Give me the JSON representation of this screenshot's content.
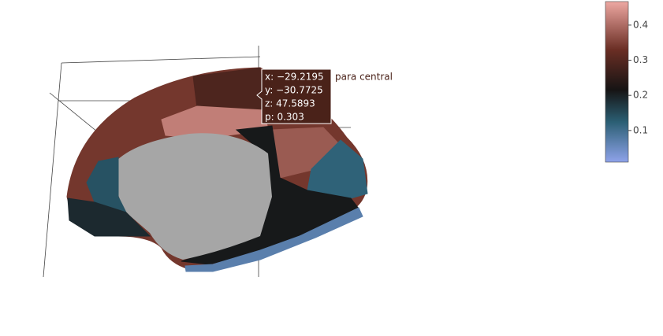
{
  "chart_data": {
    "type": "mesh3d",
    "values": [
      0.34,
      0.29,
      0.42,
      0.38,
      0.12,
      0.21,
      0.14,
      0.19,
      0.07
    ],
    "colorscale": [
      [
        0,
        "#8fa3ea"
      ],
      [
        0.25,
        "#2b5f74"
      ],
      [
        0.45,
        "#161414"
      ],
      [
        0.7,
        "#6a2e24"
      ],
      [
        1,
        "#eea8a2"
      ]
    ],
    "colorbar": {
      "cmin": 0.01,
      "cmax": 0.467,
      "ticks": [
        0.1,
        0.2,
        0.3,
        0.4
      ]
    },
    "hover": {
      "lines": [
        "x: −29.2195",
        "y: −30.7725",
        "z: 47.5893",
        "p: 0.303"
      ],
      "name": "para central",
      "color": "#4a2219"
    }
  }
}
